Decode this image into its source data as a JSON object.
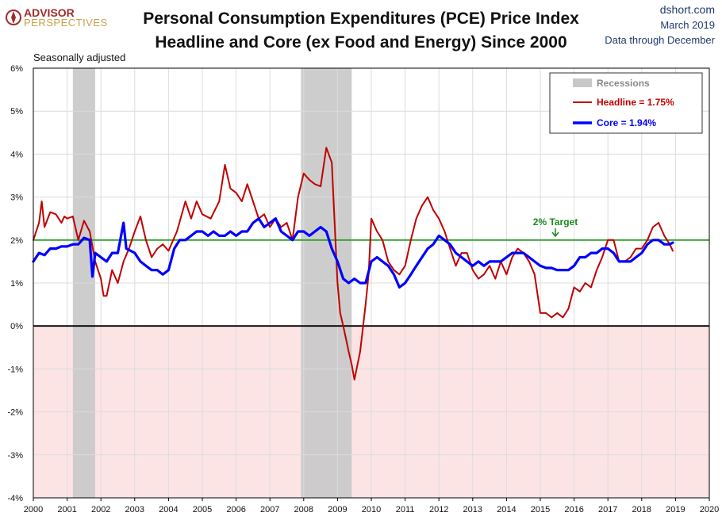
{
  "logo": {
    "line1": "ADVISOR",
    "line2": "PERSPECTIVES"
  },
  "source": {
    "site": "dshort.com",
    "date": "March 2019",
    "coverage": "Data through December"
  },
  "chart_data": {
    "type": "line",
    "title": "Personal Consumption Expenditures (PCE) Price Index",
    "subtitle": "Headline and Core (ex Food and Energy) Since 2000",
    "note": "Seasonally adjusted",
    "xlabel": "",
    "ylabel": "",
    "xlim": [
      2000,
      2020
    ],
    "ylim": [
      -4,
      6
    ],
    "x_ticks": [
      "2000",
      "2001",
      "2002",
      "2003",
      "2004",
      "2005",
      "2006",
      "2007",
      "2008",
      "2009",
      "2010",
      "2011",
      "2012",
      "2013",
      "2014",
      "2015",
      "2016",
      "2017",
      "2018",
      "2019",
      "2020"
    ],
    "y_ticks": [
      "6%",
      "5%",
      "4%",
      "3%",
      "2%",
      "1%",
      "0%",
      "-1%",
      "-2%",
      "-3%",
      "-4%"
    ],
    "grid": true,
    "legend_position": "top-right",
    "recessions": [
      {
        "start": 2001.17,
        "end": 2001.83
      },
      {
        "start": 2007.92,
        "end": 2009.42
      }
    ],
    "target": {
      "value": 2,
      "label": "2% Target"
    },
    "negative_shading": true,
    "legend": {
      "recessions": "Recessions",
      "headline": "Headline = 1.75%",
      "core": "Core = 1.94%"
    },
    "colors": {
      "headline": "#c00000",
      "core": "#0000ff",
      "target": "#2ca02c",
      "recession": "#c8c8c8",
      "negative": "#fde4e4"
    },
    "series": [
      {
        "name": "Headline",
        "points": [
          [
            2000.0,
            2.0
          ],
          [
            2000.17,
            2.4
          ],
          [
            2000.25,
            2.9
          ],
          [
            2000.33,
            2.3
          ],
          [
            2000.5,
            2.65
          ],
          [
            2000.67,
            2.6
          ],
          [
            2000.83,
            2.4
          ],
          [
            2000.92,
            2.55
          ],
          [
            2001.0,
            2.5
          ],
          [
            2001.17,
            2.55
          ],
          [
            2001.33,
            2.0
          ],
          [
            2001.5,
            2.45
          ],
          [
            2001.67,
            2.2
          ],
          [
            2001.83,
            1.5
          ],
          [
            2002.0,
            1.1
          ],
          [
            2002.08,
            0.7
          ],
          [
            2002.17,
            0.7
          ],
          [
            2002.33,
            1.3
          ],
          [
            2002.5,
            1.0
          ],
          [
            2002.67,
            1.5
          ],
          [
            2002.83,
            1.8
          ],
          [
            2003.0,
            2.2
          ],
          [
            2003.17,
            2.55
          ],
          [
            2003.33,
            2.0
          ],
          [
            2003.5,
            1.6
          ],
          [
            2003.67,
            1.8
          ],
          [
            2003.83,
            1.9
          ],
          [
            2004.0,
            1.75
          ],
          [
            2004.25,
            2.2
          ],
          [
            2004.5,
            2.9
          ],
          [
            2004.67,
            2.5
          ],
          [
            2004.83,
            2.9
          ],
          [
            2005.0,
            2.6
          ],
          [
            2005.25,
            2.5
          ],
          [
            2005.5,
            2.9
          ],
          [
            2005.67,
            3.75
          ],
          [
            2005.83,
            3.2
          ],
          [
            2006.0,
            3.1
          ],
          [
            2006.17,
            2.9
          ],
          [
            2006.33,
            3.3
          ],
          [
            2006.5,
            2.9
          ],
          [
            2006.67,
            2.5
          ],
          [
            2006.83,
            2.6
          ],
          [
            2007.0,
            2.3
          ],
          [
            2007.17,
            2.5
          ],
          [
            2007.33,
            2.3
          ],
          [
            2007.5,
            2.4
          ],
          [
            2007.67,
            2.0
          ],
          [
            2007.83,
            3.0
          ],
          [
            2008.0,
            3.55
          ],
          [
            2008.17,
            3.4
          ],
          [
            2008.33,
            3.3
          ],
          [
            2008.5,
            3.25
          ],
          [
            2008.67,
            4.15
          ],
          [
            2008.83,
            3.8
          ],
          [
            2008.92,
            2.3
          ],
          [
            2009.0,
            1.0
          ],
          [
            2009.08,
            0.3
          ],
          [
            2009.17,
            0.0
          ],
          [
            2009.25,
            -0.3
          ],
          [
            2009.33,
            -0.6
          ],
          [
            2009.42,
            -0.9
          ],
          [
            2009.5,
            -1.25
          ],
          [
            2009.67,
            -0.6
          ],
          [
            2009.83,
            0.5
          ],
          [
            2009.92,
            1.2
          ],
          [
            2010.0,
            2.5
          ],
          [
            2010.17,
            2.2
          ],
          [
            2010.33,
            2.0
          ],
          [
            2010.5,
            1.5
          ],
          [
            2010.67,
            1.3
          ],
          [
            2010.83,
            1.2
          ],
          [
            2011.0,
            1.4
          ],
          [
            2011.17,
            2.0
          ],
          [
            2011.33,
            2.5
          ],
          [
            2011.5,
            2.8
          ],
          [
            2011.67,
            3.0
          ],
          [
            2011.83,
            2.7
          ],
          [
            2012.0,
            2.5
          ],
          [
            2012.17,
            2.2
          ],
          [
            2012.33,
            1.8
          ],
          [
            2012.5,
            1.4
          ],
          [
            2012.67,
            1.7
          ],
          [
            2012.83,
            1.7
          ],
          [
            2013.0,
            1.3
          ],
          [
            2013.17,
            1.1
          ],
          [
            2013.33,
            1.2
          ],
          [
            2013.5,
            1.4
          ],
          [
            2013.67,
            1.1
          ],
          [
            2013.83,
            1.5
          ],
          [
            2014.0,
            1.2
          ],
          [
            2014.17,
            1.6
          ],
          [
            2014.33,
            1.8
          ],
          [
            2014.5,
            1.7
          ],
          [
            2014.67,
            1.5
          ],
          [
            2014.83,
            1.2
          ],
          [
            2015.0,
            0.3
          ],
          [
            2015.17,
            0.3
          ],
          [
            2015.33,
            0.2
          ],
          [
            2015.5,
            0.3
          ],
          [
            2015.67,
            0.2
          ],
          [
            2015.83,
            0.4
          ],
          [
            2016.0,
            0.9
          ],
          [
            2016.17,
            0.8
          ],
          [
            2016.33,
            1.0
          ],
          [
            2016.5,
            0.9
          ],
          [
            2016.67,
            1.3
          ],
          [
            2016.83,
            1.6
          ],
          [
            2017.0,
            2.0
          ],
          [
            2017.17,
            2.0
          ],
          [
            2017.33,
            1.5
          ],
          [
            2017.5,
            1.5
          ],
          [
            2017.67,
            1.6
          ],
          [
            2017.83,
            1.8
          ],
          [
            2018.0,
            1.8
          ],
          [
            2018.17,
            2.0
          ],
          [
            2018.33,
            2.3
          ],
          [
            2018.5,
            2.4
          ],
          [
            2018.67,
            2.1
          ],
          [
            2018.83,
            1.9
          ],
          [
            2018.92,
            1.75
          ]
        ]
      },
      {
        "name": "Core",
        "points": [
          [
            2000.0,
            1.5
          ],
          [
            2000.17,
            1.7
          ],
          [
            2000.33,
            1.65
          ],
          [
            2000.5,
            1.8
          ],
          [
            2000.67,
            1.8
          ],
          [
            2000.83,
            1.85
          ],
          [
            2001.0,
            1.85
          ],
          [
            2001.17,
            1.9
          ],
          [
            2001.33,
            1.9
          ],
          [
            2001.5,
            2.05
          ],
          [
            2001.67,
            2.0
          ],
          [
            2001.75,
            1.15
          ],
          [
            2001.83,
            1.7
          ],
          [
            2002.0,
            1.6
          ],
          [
            2002.17,
            1.5
          ],
          [
            2002.33,
            1.7
          ],
          [
            2002.5,
            1.7
          ],
          [
            2002.67,
            2.4
          ],
          [
            2002.75,
            1.8
          ],
          [
            2003.0,
            1.7
          ],
          [
            2003.17,
            1.5
          ],
          [
            2003.33,
            1.4
          ],
          [
            2003.5,
            1.3
          ],
          [
            2003.67,
            1.3
          ],
          [
            2003.83,
            1.2
          ],
          [
            2004.0,
            1.3
          ],
          [
            2004.17,
            1.8
          ],
          [
            2004.33,
            2.0
          ],
          [
            2004.5,
            2.0
          ],
          [
            2004.67,
            2.1
          ],
          [
            2004.83,
            2.2
          ],
          [
            2005.0,
            2.2
          ],
          [
            2005.17,
            2.1
          ],
          [
            2005.33,
            2.2
          ],
          [
            2005.5,
            2.1
          ],
          [
            2005.67,
            2.1
          ],
          [
            2005.83,
            2.2
          ],
          [
            2006.0,
            2.1
          ],
          [
            2006.17,
            2.2
          ],
          [
            2006.33,
            2.2
          ],
          [
            2006.5,
            2.4
          ],
          [
            2006.67,
            2.5
          ],
          [
            2006.83,
            2.3
          ],
          [
            2007.0,
            2.4
          ],
          [
            2007.17,
            2.5
          ],
          [
            2007.33,
            2.2
          ],
          [
            2007.5,
            2.1
          ],
          [
            2007.67,
            2.0
          ],
          [
            2007.83,
            2.2
          ],
          [
            2008.0,
            2.2
          ],
          [
            2008.17,
            2.1
          ],
          [
            2008.33,
            2.2
          ],
          [
            2008.5,
            2.3
          ],
          [
            2008.67,
            2.2
          ],
          [
            2008.83,
            1.8
          ],
          [
            2009.0,
            1.5
          ],
          [
            2009.17,
            1.1
          ],
          [
            2009.33,
            1.0
          ],
          [
            2009.5,
            1.1
          ],
          [
            2009.67,
            1.0
          ],
          [
            2009.83,
            1.0
          ],
          [
            2010.0,
            1.5
          ],
          [
            2010.17,
            1.6
          ],
          [
            2010.33,
            1.5
          ],
          [
            2010.5,
            1.4
          ],
          [
            2010.67,
            1.2
          ],
          [
            2010.83,
            0.9
          ],
          [
            2011.0,
            1.0
          ],
          [
            2011.17,
            1.2
          ],
          [
            2011.33,
            1.4
          ],
          [
            2011.5,
            1.6
          ],
          [
            2011.67,
            1.8
          ],
          [
            2011.83,
            1.9
          ],
          [
            2012.0,
            2.1
          ],
          [
            2012.17,
            2.0
          ],
          [
            2012.33,
            1.9
          ],
          [
            2012.5,
            1.7
          ],
          [
            2012.67,
            1.6
          ],
          [
            2012.83,
            1.5
          ],
          [
            2013.0,
            1.4
          ],
          [
            2013.17,
            1.5
          ],
          [
            2013.33,
            1.4
          ],
          [
            2013.5,
            1.5
          ],
          [
            2013.67,
            1.5
          ],
          [
            2013.83,
            1.5
          ],
          [
            2014.0,
            1.6
          ],
          [
            2014.17,
            1.7
          ],
          [
            2014.33,
            1.7
          ],
          [
            2014.5,
            1.7
          ],
          [
            2014.67,
            1.6
          ],
          [
            2014.83,
            1.5
          ],
          [
            2015.0,
            1.4
          ],
          [
            2015.17,
            1.35
          ],
          [
            2015.33,
            1.35
          ],
          [
            2015.5,
            1.3
          ],
          [
            2015.67,
            1.3
          ],
          [
            2015.83,
            1.3
          ],
          [
            2016.0,
            1.4
          ],
          [
            2016.17,
            1.6
          ],
          [
            2016.33,
            1.6
          ],
          [
            2016.5,
            1.7
          ],
          [
            2016.67,
            1.7
          ],
          [
            2016.83,
            1.8
          ],
          [
            2017.0,
            1.8
          ],
          [
            2017.17,
            1.7
          ],
          [
            2017.33,
            1.5
          ],
          [
            2017.5,
            1.5
          ],
          [
            2017.67,
            1.5
          ],
          [
            2017.83,
            1.6
          ],
          [
            2018.0,
            1.7
          ],
          [
            2018.17,
            1.9
          ],
          [
            2018.33,
            2.0
          ],
          [
            2018.5,
            2.0
          ],
          [
            2018.67,
            1.9
          ],
          [
            2018.83,
            1.9
          ],
          [
            2018.92,
            1.94
          ]
        ]
      }
    ]
  }
}
